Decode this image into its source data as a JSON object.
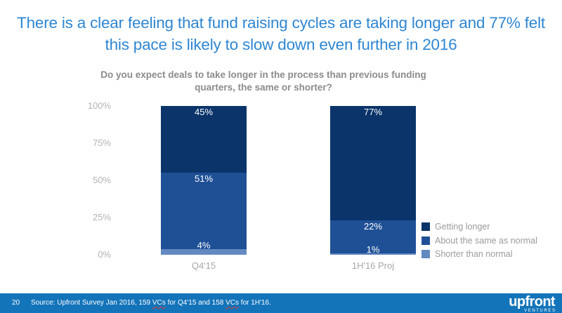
{
  "slide": {
    "title_lines": [
      "There is a clear feeling that fund raising cycles are taking longer and 77% felt",
      "this pace is likely to slow down even further in 2016"
    ]
  },
  "chart_data": {
    "type": "bar",
    "stacked": true,
    "title_lines": [
      "Do you expect deals to take longer in the process than previous funding",
      "quarters, the same or shorter?"
    ],
    "title": "Do you expect deals to take longer in the process than previous funding quarters, the same or shorter?",
    "categories": [
      "Q4'15",
      "1H'16 Proj"
    ],
    "series": [
      {
        "name": "Getting longer",
        "color": "#0A346A",
        "values": [
          45,
          77
        ]
      },
      {
        "name": "About the same as normal",
        "color": "#1F5096",
        "values": [
          51,
          22
        ]
      },
      {
        "name": "Shorter than normal",
        "color": "#6389C1",
        "values": [
          4,
          1
        ]
      }
    ],
    "y_ticks": [
      "100%",
      "75%",
      "50%",
      "25%",
      "0%"
    ],
    "ylim": [
      0,
      100
    ],
    "grid": false,
    "legend_position": "right-bottom",
    "data_label_format": "{value}%"
  },
  "footer": {
    "page_number": "20",
    "source_segments": [
      {
        "text": "Source: Upfront Survey Jan 2016, 159 ",
        "misspelled": false
      },
      {
        "text": "VCs",
        "misspelled": true
      },
      {
        "text": " for Q4'15 and 158 ",
        "misspelled": false
      },
      {
        "text": "VCs",
        "misspelled": true
      },
      {
        "text": " for 1H'16.",
        "misspelled": false
      }
    ],
    "logo": {
      "name": "upfront",
      "sub": "VENTURES"
    }
  },
  "colors": {
    "title_blue": "#2E86D2",
    "footer_bar": "#1374BA",
    "chart_title_gray": "#8B8B8B",
    "axis_gray": "#B3B3B3",
    "legend_gray": "#9B9B9B",
    "navy": "#0A346A",
    "medium_blue": "#1F5096",
    "light_blue": "#6389C1"
  }
}
